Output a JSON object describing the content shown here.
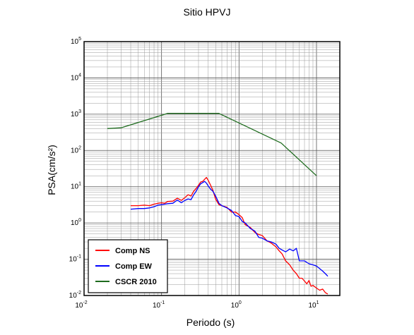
{
  "chart_data": {
    "type": "line",
    "title": "Sitio HPVJ",
    "xlabel": "Periodo (s)",
    "ylabel": "PSA(cm/s²)",
    "xscale": "log",
    "yscale": "log",
    "xlim": [
      0.01,
      20
    ],
    "ylim": [
      0.01,
      100000
    ],
    "grid": true,
    "legend_position": "bottom-left",
    "x_ticks": [
      {
        "base": "10",
        "exp": "-2",
        "value": 0.01
      },
      {
        "base": "10",
        "exp": "-1",
        "value": 0.1
      },
      {
        "base": "10",
        "exp": "0",
        "value": 1
      },
      {
        "base": "10",
        "exp": "1",
        "value": 10
      }
    ],
    "y_ticks": [
      {
        "base": "10",
        "exp": "-2",
        "value": 0.01
      },
      {
        "base": "10",
        "exp": "-1",
        "value": 0.1
      },
      {
        "base": "10",
        "exp": "0",
        "value": 1
      },
      {
        "base": "10",
        "exp": "1",
        "value": 10
      },
      {
        "base": "10",
        "exp": "2",
        "value": 100
      },
      {
        "base": "10",
        "exp": "3",
        "value": 1000
      },
      {
        "base": "10",
        "exp": "4",
        "value": 10000
      },
      {
        "base": "10",
        "exp": "5",
        "value": 100000
      }
    ],
    "series": [
      {
        "name": "Comp NS",
        "color": "#ff0000",
        "x": [
          0.04,
          0.05,
          0.06,
          0.07,
          0.08,
          0.09,
          0.1,
          0.11,
          0.12,
          0.14,
          0.16,
          0.18,
          0.2,
          0.22,
          0.24,
          0.26,
          0.28,
          0.3,
          0.32,
          0.34,
          0.36,
          0.38,
          0.4,
          0.43,
          0.46,
          0.5,
          0.55,
          0.6,
          0.7,
          0.8,
          0.9,
          1.0,
          1.1,
          1.2,
          1.4,
          1.6,
          1.8,
          2.0,
          2.3,
          2.6,
          3.0,
          3.3,
          3.6,
          4.0,
          4.5,
          5.0,
          5.5,
          6.0,
          6.5,
          7.0,
          7.5,
          8.0,
          8.5,
          9.0,
          10.0,
          11.0,
          12.0,
          13.0,
          14.0
        ],
        "y": [
          3.0,
          3.0,
          3.1,
          3.0,
          3.3,
          3.5,
          3.6,
          3.5,
          3.9,
          4.0,
          4.8,
          4.2,
          5.0,
          6.0,
          5.5,
          7.5,
          9.0,
          11.0,
          13.5,
          14.0,
          16.0,
          18.0,
          15.0,
          11.0,
          8.0,
          4.5,
          3.2,
          3.0,
          2.7,
          2.0,
          2.0,
          1.7,
          1.4,
          0.9,
          0.75,
          0.55,
          0.48,
          0.45,
          0.32,
          0.28,
          0.22,
          0.17,
          0.14,
          0.09,
          0.07,
          0.05,
          0.04,
          0.03,
          0.03,
          0.025,
          0.021,
          0.026,
          0.018,
          0.019,
          0.016,
          0.014,
          0.015,
          0.012,
          0.011
        ]
      },
      {
        "name": "Comp EW",
        "color": "#0000ff",
        "x": [
          0.04,
          0.05,
          0.06,
          0.07,
          0.08,
          0.09,
          0.1,
          0.11,
          0.12,
          0.14,
          0.16,
          0.18,
          0.2,
          0.22,
          0.24,
          0.26,
          0.28,
          0.3,
          0.32,
          0.34,
          0.36,
          0.38,
          0.4,
          0.43,
          0.46,
          0.5,
          0.55,
          0.6,
          0.7,
          0.8,
          0.9,
          1.0,
          1.1,
          1.2,
          1.4,
          1.6,
          1.8,
          2.0,
          2.3,
          2.6,
          3.0,
          3.3,
          3.6,
          4.0,
          4.5,
          5.0,
          5.5,
          6.0,
          7.0,
          8.0,
          9.0,
          10.0,
          11.0,
          12.0,
          13.0,
          14.0
        ],
        "y": [
          2.4,
          2.5,
          2.5,
          2.6,
          2.8,
          3.1,
          3.2,
          3.3,
          3.4,
          3.5,
          4.3,
          3.6,
          4.2,
          4.6,
          4.4,
          6.0,
          7.5,
          10.0,
          12.0,
          13.0,
          14.0,
          12.5,
          10.5,
          8.5,
          7.5,
          5.5,
          3.5,
          3.0,
          2.6,
          2.2,
          1.6,
          1.5,
          1.1,
          1.0,
          0.7,
          0.6,
          0.4,
          0.38,
          0.32,
          0.3,
          0.26,
          0.2,
          0.18,
          0.16,
          0.19,
          0.17,
          0.2,
          0.09,
          0.09,
          0.075,
          0.07,
          0.065,
          0.055,
          0.047,
          0.04,
          0.034
        ]
      },
      {
        "name": "CSCR 2010",
        "color": "#1e6b1e",
        "x": [
          0.02,
          0.03,
          0.12,
          0.55,
          3.5,
          10.0
        ],
        "y": [
          400,
          420,
          1050,
          1050,
          160,
          20
        ]
      }
    ]
  }
}
